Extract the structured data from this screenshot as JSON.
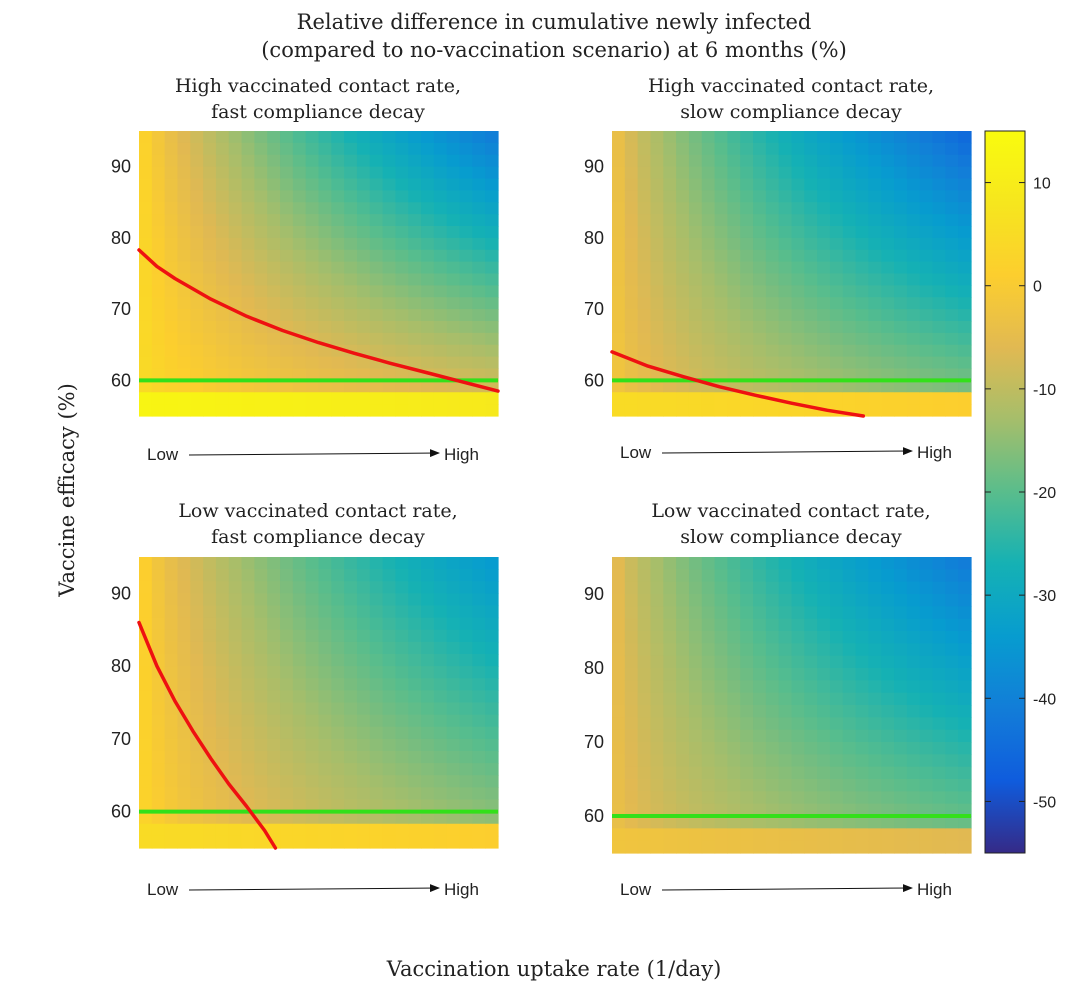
{
  "figure": {
    "title_line1": "Relative difference in cumulative newly infected",
    "title_line2": "(compared to no-vaccination scenario) at 6 months (%)",
    "ylabel": "Vaccine efficacy (%)",
    "xlabel": "Vaccination uptake rate (1/day)",
    "arrow_low": "Low",
    "arrow_high": "High"
  },
  "colorbar": {
    "range": [
      -55,
      15
    ],
    "ticks": [
      10,
      0,
      -10,
      -20,
      -30,
      -40,
      -50
    ],
    "tick_labels": [
      "10",
      "0",
      "-10",
      "-20",
      "-30",
      "-40",
      "-50"
    ],
    "colormap": "parula"
  },
  "chart_data": [
    {
      "type": "heatmap",
      "title_line1": "High vaccinated contact rate,",
      "title_line2": "fast compliance decay",
      "xlabel": "Vaccination uptake rate (Low → High)",
      "ylabel": "Vaccine efficacy (%)",
      "ylim": [
        55,
        95
      ],
      "yticks": [
        60,
        70,
        80,
        90
      ],
      "ytick_labels": [
        "60",
        "70",
        "80",
        "90"
      ],
      "heat": {
        "base": 6,
        "a": 10,
        "b": 20,
        "c": 18,
        "floor": 13
      },
      "red_curve": {
        "x": [
          0,
          0.05,
          0.1,
          0.2,
          0.3,
          0.4,
          0.5,
          0.6,
          0.7,
          0.8,
          0.9,
          1.0
        ],
        "y": [
          78.3,
          76.0,
          74.3,
          71.4,
          69.0,
          67.0,
          65.3,
          63.8,
          62.4,
          61.1,
          59.8,
          58.5
        ]
      },
      "green_line_y": 60
    },
    {
      "type": "heatmap",
      "title_line1": "High vaccinated contact rate,",
      "title_line2": "slow compliance decay",
      "xlabel": "Vaccination uptake rate (Low → High)",
      "ylabel": "Vaccine efficacy (%)",
      "ylim": [
        55,
        95
      ],
      "yticks": [
        60,
        70,
        80,
        90
      ],
      "ytick_labels": [
        "60",
        "70",
        "80",
        "90"
      ],
      "heat": {
        "base": 0,
        "a": 14,
        "b": 18,
        "c": 14,
        "floor": 5
      },
      "red_curve": {
        "x": [
          0,
          0.1,
          0.2,
          0.3,
          0.4,
          0.5,
          0.6,
          0.7
        ],
        "y": [
          64.0,
          62.0,
          60.5,
          59.1,
          57.9,
          56.8,
          55.8,
          55.0
        ]
      },
      "green_line_y": 60
    },
    {
      "type": "heatmap",
      "title_line1": "Low vaccinated contact rate,",
      "title_line2": "fast compliance decay",
      "xlabel": "Vaccination uptake rate (Low → High)",
      "ylabel": "Vaccine efficacy (%)",
      "ylim": [
        55,
        95
      ],
      "yticks": [
        60,
        70,
        80,
        90
      ],
      "ytick_labels": [
        "60",
        "70",
        "80",
        "90"
      ],
      "heat": {
        "base": 5,
        "a": 18,
        "b": 12,
        "c": 10,
        "floor": 5
      },
      "red_curve": {
        "x": [
          0,
          0.05,
          0.1,
          0.15,
          0.2,
          0.25,
          0.3,
          0.35,
          0.38
        ],
        "y": [
          86.0,
          80.0,
          75.2,
          71.1,
          67.3,
          63.8,
          60.7,
          57.4,
          55.0
        ]
      },
      "green_line_y": 60
    },
    {
      "type": "heatmap",
      "title_line1": "Low vaccinated contact rate,",
      "title_line2": "slow compliance decay",
      "xlabel": "Vaccination uptake rate (Low → High)",
      "ylabel": "Vaccine efficacy (%)",
      "ylim": [
        55,
        95
      ],
      "yticks": [
        60,
        70,
        80,
        90
      ],
      "ytick_labels": [
        "60",
        "70",
        "80",
        "90"
      ],
      "heat": {
        "base": -2,
        "a": 14,
        "b": 14,
        "c": 12,
        "floor": -2
      },
      "red_curve": {
        "x": [],
        "y": []
      },
      "green_line_y": 60
    }
  ]
}
